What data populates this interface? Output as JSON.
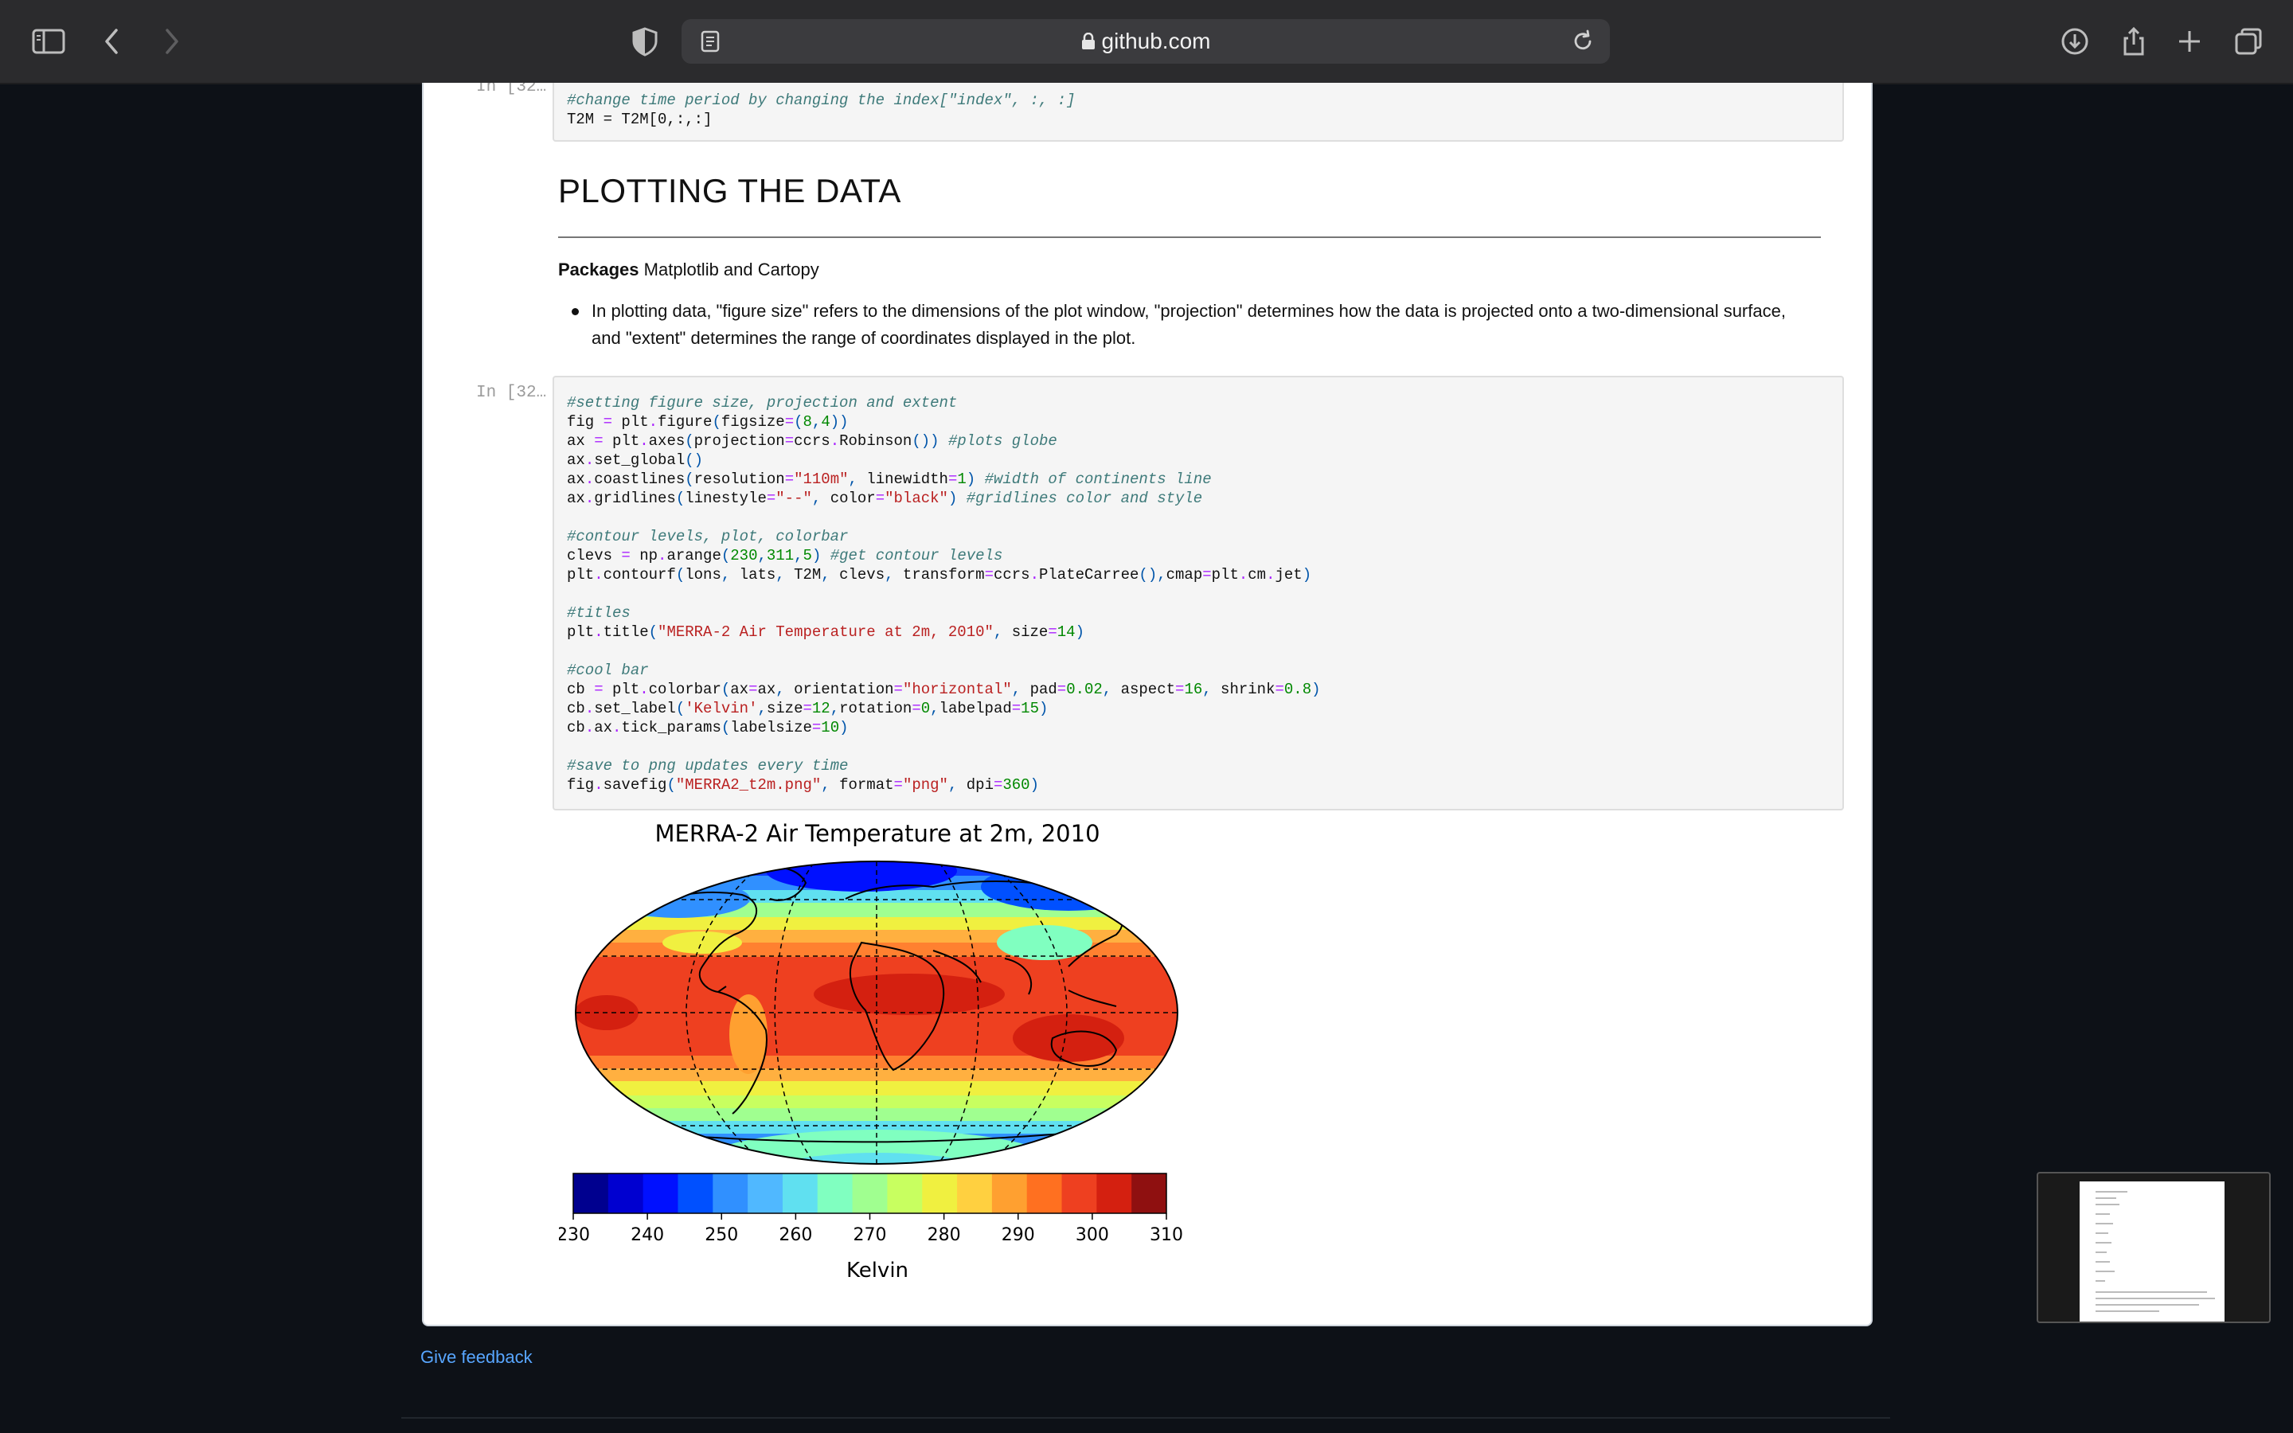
{
  "browser": {
    "url": "github.com",
    "icons": [
      "sidebar-icon",
      "back-icon",
      "forward-icon",
      "shield-icon",
      "reader-icon",
      "lock-icon",
      "reload-icon",
      "download-icon",
      "share-icon",
      "new-tab-icon",
      "tabs-overview-icon"
    ]
  },
  "cells": {
    "prev": {
      "prompt": "In [32…",
      "lines": [
        "#change time period by changing the index[\"index\", :, :]",
        "T2M = T2M[0,:,:]"
      ]
    },
    "markdown": {
      "title": "PLOTTING THE DATA",
      "packages_label": "Packages",
      "packages_text": "Matplotlib and Cartopy",
      "bullet": "In plotting data, \"figure size\" refers to the dimensions of the plot window, \"projection\" determines how the data is projected onto a two-dimensional surface, and \"extent\" determines the range of coordinates displayed in the plot."
    },
    "plot": {
      "prompt": "In [32…",
      "lines": [
        "#setting figure size, projection and extent",
        "fig = plt.figure(figsize=(8,4))",
        "ax = plt.axes(projection=ccrs.Robinson()) #plots globe",
        "ax.set_global()",
        "ax.coastlines(resolution=\"110m\", linewidth=1) #width of continents line",
        "ax.gridlines(linestyle=\"--\", color=\"black\") #gridlines color and style",
        "",
        "#contour levels, plot, colorbar",
        "clevs = np.arange(230,311,5) #get contour levels",
        "plt.contourf(lons, lats, T2M, clevs, transform=ccrs.PlateCarree(),cmap=plt.cm.jet)",
        "",
        "#titles",
        "plt.title(\"MERRA-2 Air Temperature at 2m, 2010\", size=14)",
        "",
        "#cool bar",
        "cb = plt.colorbar(ax=ax, orientation=\"horizontal\", pad=0.02, aspect=16, shrink=0.8)",
        "cb.set_label('Kelvin',size=12,rotation=0,labelpad=15)",
        "cb.ax.tick_params(labelsize=10)",
        "",
        "#save to png updates every time",
        "fig.savefig(\"MERRA2_t2m.png\", format=\"png\", dpi=360)"
      ]
    }
  },
  "figure": {
    "title": "MERRA-2 Air Temperature at 2m, 2010",
    "colorbar_label": "Kelvin",
    "colorbar_ticks": [
      "230",
      "240",
      "250",
      "260",
      "270",
      "280",
      "290",
      "300",
      "310"
    ],
    "colorbar_colors": [
      "#00008f",
      "#0000d0",
      "#0010ff",
      "#0050ff",
      "#3090ff",
      "#50b8ff",
      "#60e0f0",
      "#80ffc0",
      "#a0ff90",
      "#c8ff60",
      "#f0f040",
      "#ffd040",
      "#ffa030",
      "#ff7020",
      "#ee4020",
      "#d42010",
      "#8f1010"
    ],
    "projection": "Robinson"
  },
  "feedback": "Give feedback"
}
